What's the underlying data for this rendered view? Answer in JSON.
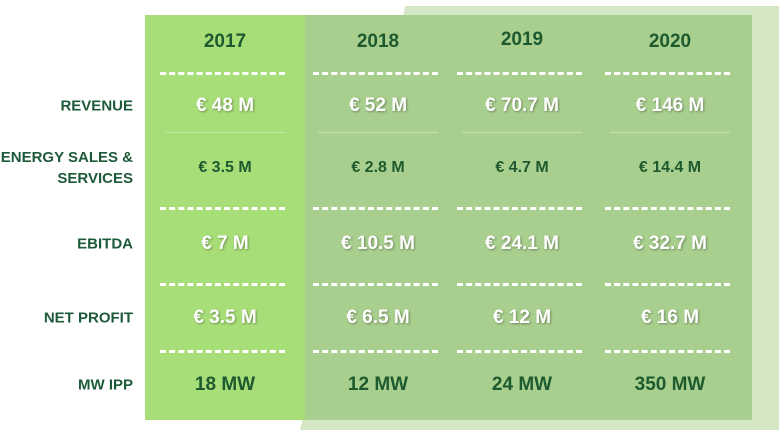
{
  "table": {
    "columns": [
      "2017",
      "2018",
      "2019",
      "2020"
    ],
    "rows": [
      {
        "label": "REVENUE",
        "cells": [
          "€ 48 M",
          "€ 52 M",
          "€ 70.7 M",
          "€ 146 M"
        ]
      },
      {
        "label": "ENERGY SALES & SERVICES",
        "cells": [
          "€ 3.5 M",
          "€ 2.8 M",
          "€ 4.7 M",
          "€ 14.4 M"
        ]
      },
      {
        "label": "EBITDA",
        "cells": [
          "€ 7 M",
          "€ 10.5 M",
          "€ 24.1 M",
          "€ 32.7 M"
        ]
      },
      {
        "label": "NET PROFIT",
        "cells": [
          "€ 3.5 M",
          "€ 6.5 M",
          "€ 12 M",
          "€ 16 M"
        ]
      },
      {
        "label": "MW IPP",
        "cells": [
          "18 MW",
          "12 MW",
          "24 MW",
          "350 MW"
        ]
      }
    ]
  }
}
